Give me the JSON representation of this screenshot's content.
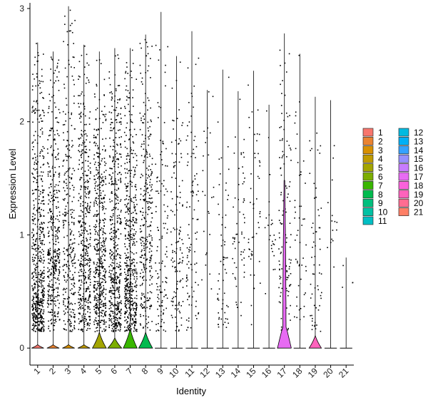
{
  "chart_data": {
    "type": "violin",
    "xlabel": "Identity",
    "ylabel": "Expression Level",
    "ylim": [
      -0.15,
      3.05
    ],
    "yticks": [
      0,
      1,
      2,
      3
    ],
    "categories": [
      "1",
      "2",
      "3",
      "4",
      "5",
      "6",
      "7",
      "8",
      "9",
      "10",
      "11",
      "12",
      "13",
      "14",
      "15",
      "16",
      "17",
      "18",
      "19",
      "20",
      "21"
    ],
    "colors": [
      "#F8766D",
      "#EA8331",
      "#D89000",
      "#C09B00",
      "#A3A500",
      "#7CAE00",
      "#39B600",
      "#00BB4E",
      "#00BF7D",
      "#00C1A3",
      "#00BFC4",
      "#00BAE0",
      "#00B0F6",
      "#35A2FF",
      "#9590FF",
      "#C77CFF",
      "#E76BF3",
      "#FA62DB",
      "#FF62BC",
      "#FF6C91",
      "#FF7F66"
    ],
    "max_values": [
      2.7,
      2.62,
      3.02,
      2.68,
      2.62,
      2.65,
      2.65,
      2.77,
      2.97,
      2.58,
      2.8,
      2.28,
      2.46,
      2.27,
      2.45,
      2.15,
      2.78,
      2.6,
      2.22,
      2.19,
      0.8
    ],
    "violin_height": [
      0.03,
      0.03,
      0.03,
      0.03,
      0.14,
      0.09,
      0.17,
      0.14,
      0.02,
      0.02,
      0.02,
      0.02,
      0.02,
      0.02,
      0.02,
      0.02,
      1.48,
      0.02,
      0.11,
      0.02,
      0.02
    ],
    "violin_halfwidth": [
      0.4,
      0.4,
      0.4,
      0.4,
      0.45,
      0.45,
      0.45,
      0.45,
      0.4,
      0.4,
      0.4,
      0.4,
      0.4,
      0.4,
      0.4,
      0.4,
      0.45,
      0.4,
      0.4,
      0.4,
      0.4
    ],
    "point_density": [
      600,
      400,
      300,
      450,
      500,
      480,
      520,
      300,
      120,
      130,
      100,
      25,
      60,
      60,
      50,
      25,
      120,
      50,
      60,
      15,
      4
    ],
    "point_center": [
      0.7,
      0.9,
      0.9,
      0.8,
      0.8,
      0.75,
      0.75,
      1.0,
      0.8,
      0.9,
      0.9,
      1.1,
      0.7,
      1.0,
      1.0,
      1.1,
      0.9,
      1.0,
      0.6,
      1.2,
      0.6
    ],
    "legend": {
      "placement": "right",
      "entries": [
        "1",
        "2",
        "3",
        "4",
        "5",
        "6",
        "7",
        "8",
        "9",
        "10",
        "11",
        "12",
        "13",
        "14",
        "15",
        "16",
        "17",
        "18",
        "19",
        "20",
        "21"
      ]
    }
  }
}
